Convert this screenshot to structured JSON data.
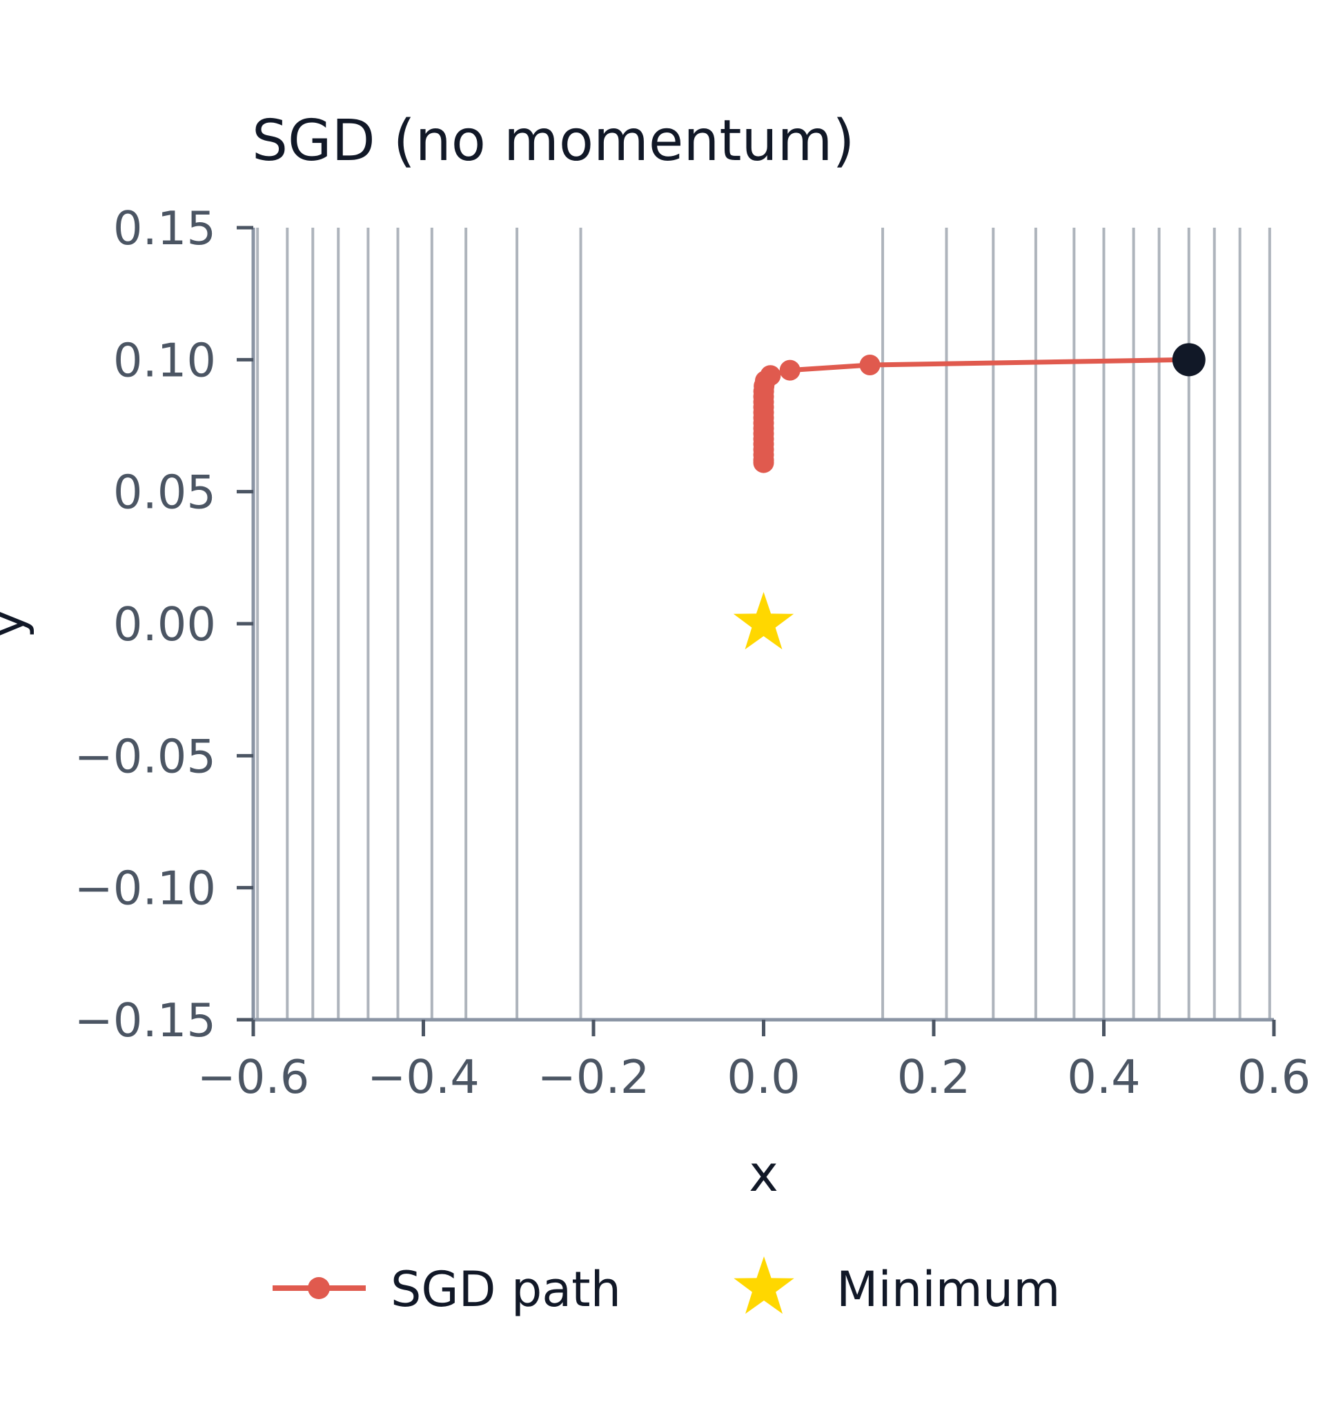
{
  "chart_data": {
    "type": "line",
    "title": "SGD (no momentum)",
    "xlabel": "x",
    "ylabel": "y",
    "xlim": [
      -0.6,
      0.6
    ],
    "ylim": [
      -0.15,
      0.15
    ],
    "x_ticks": [
      "−0.6",
      "−0.4",
      "−0.2",
      "0.0",
      "0.2",
      "0.4",
      "0.6"
    ],
    "x_tick_values": [
      -0.6,
      -0.4,
      -0.2,
      0.0,
      0.2,
      0.4,
      0.6
    ],
    "y_ticks": [
      "0.15",
      "0.10",
      "0.05",
      "0.00",
      "−0.05",
      "−0.10",
      "−0.15"
    ],
    "y_tick_values": [
      0.15,
      0.1,
      0.05,
      0.0,
      -0.05,
      -0.1,
      -0.15
    ],
    "grid": false,
    "contour_x_levels": [
      -0.595,
      -0.56,
      -0.53,
      -0.5,
      -0.465,
      -0.43,
      -0.39,
      -0.35,
      -0.29,
      -0.215,
      0.14,
      0.215,
      0.27,
      0.32,
      0.365,
      0.4,
      0.435,
      0.465,
      0.5,
      0.53,
      0.56,
      0.595
    ],
    "series": [
      {
        "name": "SGD path",
        "color": "#e05a4e",
        "x": [
          0.5,
          0.125,
          0.031,
          0.008,
          0.002,
          0.0005,
          0.0001,
          0.0,
          0.0,
          0.0,
          0.0,
          0.0,
          0.0,
          0.0,
          0.0,
          0.0,
          0.0,
          0.0,
          0.0,
          0.0,
          0.0
        ],
        "y": [
          0.1,
          0.098,
          0.096,
          0.094,
          0.092,
          0.09,
          0.088,
          0.086,
          0.084,
          0.082,
          0.08,
          0.078,
          0.076,
          0.074,
          0.072,
          0.07,
          0.068,
          0.066,
          0.064,
          0.062,
          0.061
        ]
      }
    ],
    "start_point": {
      "x": 0.5,
      "y": 0.1,
      "color": "#111827"
    },
    "minimum": {
      "name": "Minimum",
      "x": 0.0,
      "y": 0.0,
      "color": "#ffd700"
    },
    "legend": {
      "placement": "bottom",
      "entries": [
        {
          "label": "SGD path",
          "marker": "line-dot",
          "color": "#e05a4e"
        },
        {
          "label": "Minimum",
          "marker": "star",
          "color": "#ffd700"
        }
      ]
    }
  }
}
